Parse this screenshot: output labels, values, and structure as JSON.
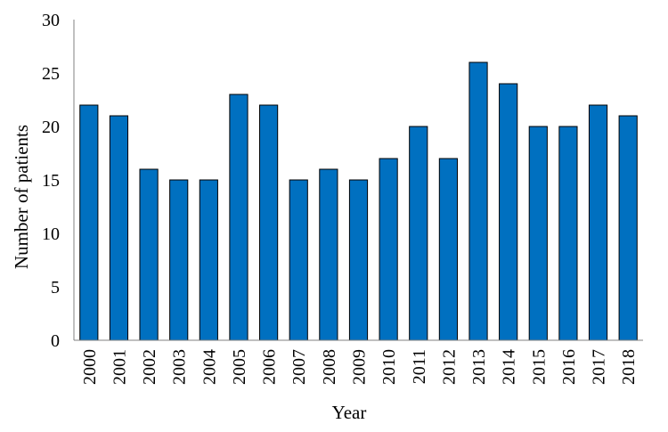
{
  "chart_data": {
    "type": "bar",
    "title": "",
    "xlabel": "Year",
    "ylabel": "Number of patients",
    "categories": [
      "2000",
      "2001",
      "2002",
      "2003",
      "2004",
      "2005",
      "2006",
      "2007",
      "2008",
      "2009",
      "2010",
      "2011",
      "2012",
      "2013",
      "2014",
      "2015",
      "2016",
      "2017",
      "2018"
    ],
    "values": [
      22,
      21,
      16,
      15,
      15,
      23,
      22,
      15,
      16,
      15,
      17,
      20,
      17,
      26,
      24,
      20,
      20,
      22,
      21
    ],
    "ylim": [
      0,
      30
    ],
    "yticks": [
      "0",
      "5",
      "10",
      "15",
      "20",
      "25",
      "30"
    ],
    "grid": false,
    "legend": "none",
    "colors": {
      "bar": "#0070C0",
      "bar_edge": "#000000",
      "axis": "#808080"
    }
  }
}
